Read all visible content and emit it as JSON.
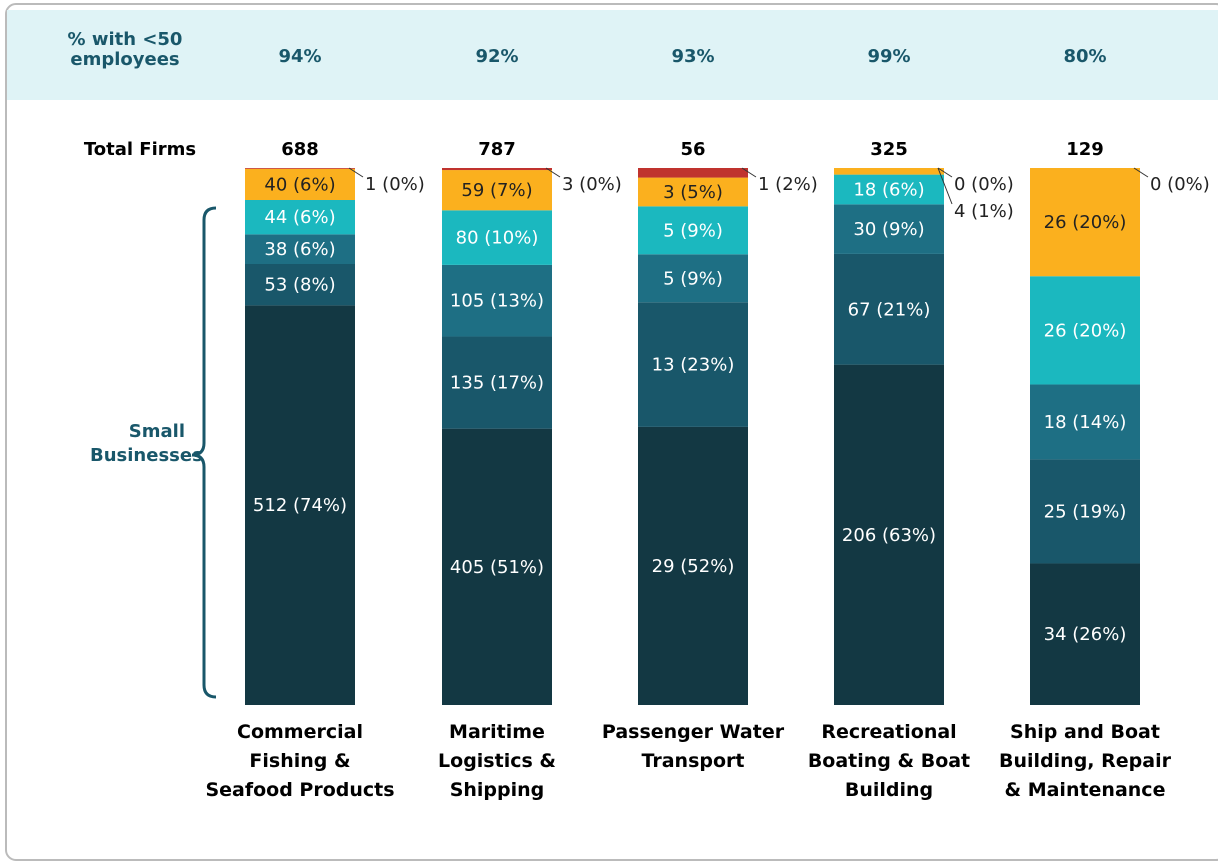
{
  "chart_data": {
    "type": "stacked_bar_100",
    "share_label": "% with <50 employees",
    "share": [
      94,
      92,
      93,
      99,
      80
    ],
    "share_labels": [
      "94%",
      "92%",
      "93%",
      "99%",
      "80%"
    ],
    "totals_label": "Total Firms",
    "totals": [
      688,
      787,
      56,
      325,
      129
    ],
    "annotation": "Small Businesses",
    "categories": [
      "Commercial Fishing & Seafood Products",
      "Maritime Logistics & Shipping",
      "Passenger Water Transport",
      "Recreational Boating & Boat Building",
      "Ship and Boat Building, Repair & Maintenance"
    ],
    "series": [
      {
        "color": "#133843",
        "values": [
          512,
          405,
          29,
          206,
          34
        ],
        "value_labels": [
          "512 (74%)",
          "405 (51%)",
          "29 (52%)",
          "206 (63%)",
          "34 (26%)"
        ]
      },
      {
        "color": "#19576a",
        "values": [
          53,
          135,
          13,
          67,
          25
        ],
        "value_labels": [
          "53 (8%)",
          "135 (17%)",
          "13 (23%)",
          "67 (21%)",
          "25 (19%)"
        ]
      },
      {
        "color": "#1e6f84",
        "values": [
          38,
          105,
          5,
          30,
          18
        ],
        "value_labels": [
          "38 (6%)",
          "105 (13%)",
          "5 (9%)",
          "30 (9%)",
          "18 (14%)"
        ]
      },
      {
        "color": "#1bb8bf",
        "values": [
          44,
          80,
          5,
          18,
          26
        ],
        "value_labels": [
          "44 (6%)",
          "80 (10%)",
          "5 (9%)",
          "18 (6%)",
          "26 (20%)"
        ]
      },
      {
        "color": "#fbb01e",
        "values": [
          40,
          59,
          3,
          4,
          26
        ],
        "value_labels": [
          "40 (6%)",
          "59 (7%)",
          "3 (5%)",
          "4 (1%)",
          "26 (20%)"
        ]
      },
      {
        "color": "#c0332e",
        "values": [
          1,
          3,
          1,
          0,
          0
        ],
        "value_labels": [
          "1 (0%)",
          "3 (0%)",
          "1 (2%)",
          "0 (0%)",
          "0 (0%)"
        ]
      }
    ]
  }
}
